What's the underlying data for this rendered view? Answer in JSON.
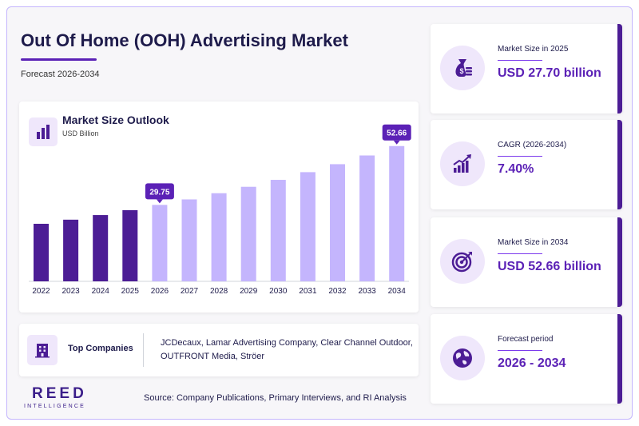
{
  "header": {
    "title": "Out Of Home (OOH) Advertising Market",
    "subtitle": "Forecast 2026-2034"
  },
  "chart_card": {
    "title": "Market Size Outlook",
    "unit": "USD Billion",
    "icon": "bar-chart-icon"
  },
  "chart_data": {
    "type": "bar",
    "title": "Market Size Outlook",
    "ylabel": "USD Billion",
    "categories": [
      "2022",
      "2023",
      "2024",
      "2025",
      "2026",
      "2027",
      "2028",
      "2029",
      "2030",
      "2031",
      "2032",
      "2033",
      "2034"
    ],
    "values": [
      22.4,
      24.0,
      25.8,
      27.7,
      29.75,
      31.9,
      34.3,
      36.8,
      39.5,
      42.5,
      45.6,
      49.0,
      52.66
    ],
    "ylim": [
      0,
      56
    ],
    "data_labels": [
      {
        "category": "2026",
        "text": "29.75"
      },
      {
        "category": "2034",
        "text": "52.66"
      }
    ],
    "colors": {
      "historical": "#4c1d95",
      "forecast": "#c4b5fd",
      "label_bg": "#5b21b6"
    },
    "grid": false
  },
  "companies": {
    "label": "Top Companies",
    "list": "JCDecaux, Lamar Advertising Company, Clear Channel Outdoor, OUTFRONT Media, Ströer",
    "icon": "building-icon"
  },
  "logo": {
    "main": "REED",
    "sub": "INTELLIGENCE"
  },
  "source": "Source: Company Publications, Primary Interviews, and RI Analysis",
  "stats": [
    {
      "label": "Market Size in 2025",
      "value": "USD 27.70 billion",
      "icon": "money-bag-icon"
    },
    {
      "label": "CAGR (2026-2034)",
      "value": "7.40%",
      "icon": "growth-chart-icon"
    },
    {
      "label": "Market Size in 2034",
      "value": "USD 52.66 billion",
      "icon": "target-icon"
    },
    {
      "label": "Forecast period",
      "value": "2026 - 2034",
      "icon": "globe-icon"
    }
  ],
  "colors": {
    "accent": "#5b21b6",
    "dark": "#1e1b4b",
    "light": "#efe7fb"
  }
}
